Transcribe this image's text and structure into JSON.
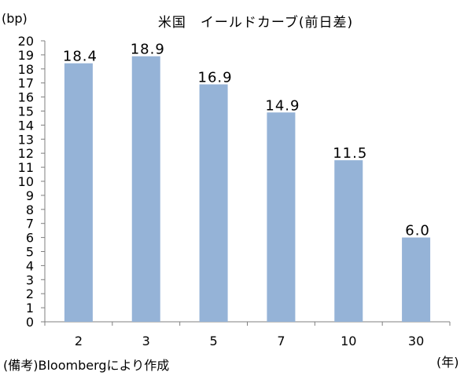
{
  "chart_data": {
    "type": "bar",
    "title": "米国　イールドカーブ(前日差)",
    "ylabel": "(bp)",
    "xlabel": "(年)",
    "categories": [
      "2",
      "3",
      "5",
      "7",
      "10",
      "30"
    ],
    "values": [
      18.4,
      18.9,
      16.9,
      14.9,
      11.5,
      6.0
    ],
    "data_labels": [
      "18.4",
      "18.9",
      "16.9",
      "14.9",
      "11.5",
      "6.0"
    ],
    "ylim": [
      0,
      20
    ],
    "yticks": [
      "0",
      "1",
      "2",
      "3",
      "4",
      "5",
      "6",
      "7",
      "8",
      "9",
      "10",
      "11",
      "12",
      "13",
      "14",
      "15",
      "16",
      "17",
      "18",
      "19",
      "20"
    ],
    "grid": false,
    "legend": "none",
    "source": "(備考)Bloombergにより作成"
  },
  "colors": {
    "bar_fill": "#95b3d7",
    "axis": "#7f7f7f",
    "text": "#000000",
    "background": "#ffffff"
  }
}
